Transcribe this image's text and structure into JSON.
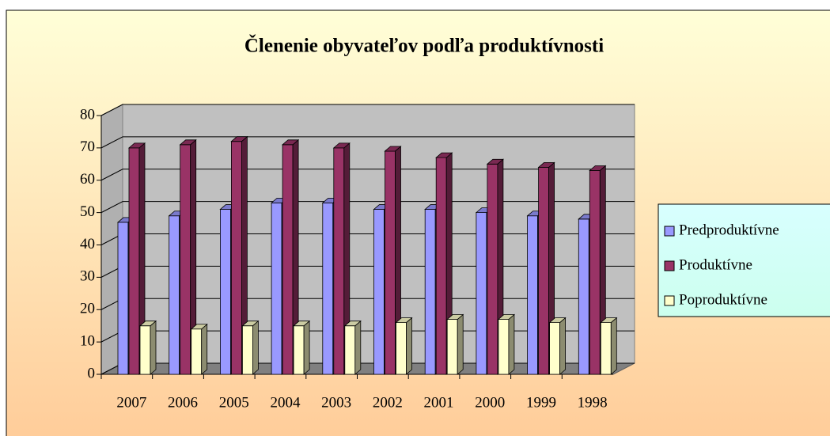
{
  "chart_data": {
    "type": "bar3d",
    "title": "Členenie obyvateľov podľa produktívnosti",
    "categories": [
      "2007",
      "2006",
      "2005",
      "2004",
      "2003",
      "2002",
      "2001",
      "2000",
      "1999",
      "1998"
    ],
    "series": [
      {
        "name": "Predproduktívne",
        "color": "#9999ff",
        "values": [
          47,
          49,
          51,
          53,
          53,
          51,
          51,
          50,
          49,
          48
        ]
      },
      {
        "name": "Produktívne",
        "color": "#993366",
        "values": [
          70,
          71,
          72,
          71,
          70,
          69,
          67,
          65,
          64,
          63
        ]
      },
      {
        "name": "Poproduktívne",
        "color": "#ffffcc",
        "values": [
          15,
          14,
          15,
          15,
          15,
          16,
          17,
          17,
          16,
          16
        ]
      }
    ],
    "ylim": [
      0,
      80
    ],
    "yticks": [
      0,
      10,
      20,
      30,
      40,
      50,
      60,
      70,
      80
    ],
    "grid": true,
    "legend": "right"
  }
}
